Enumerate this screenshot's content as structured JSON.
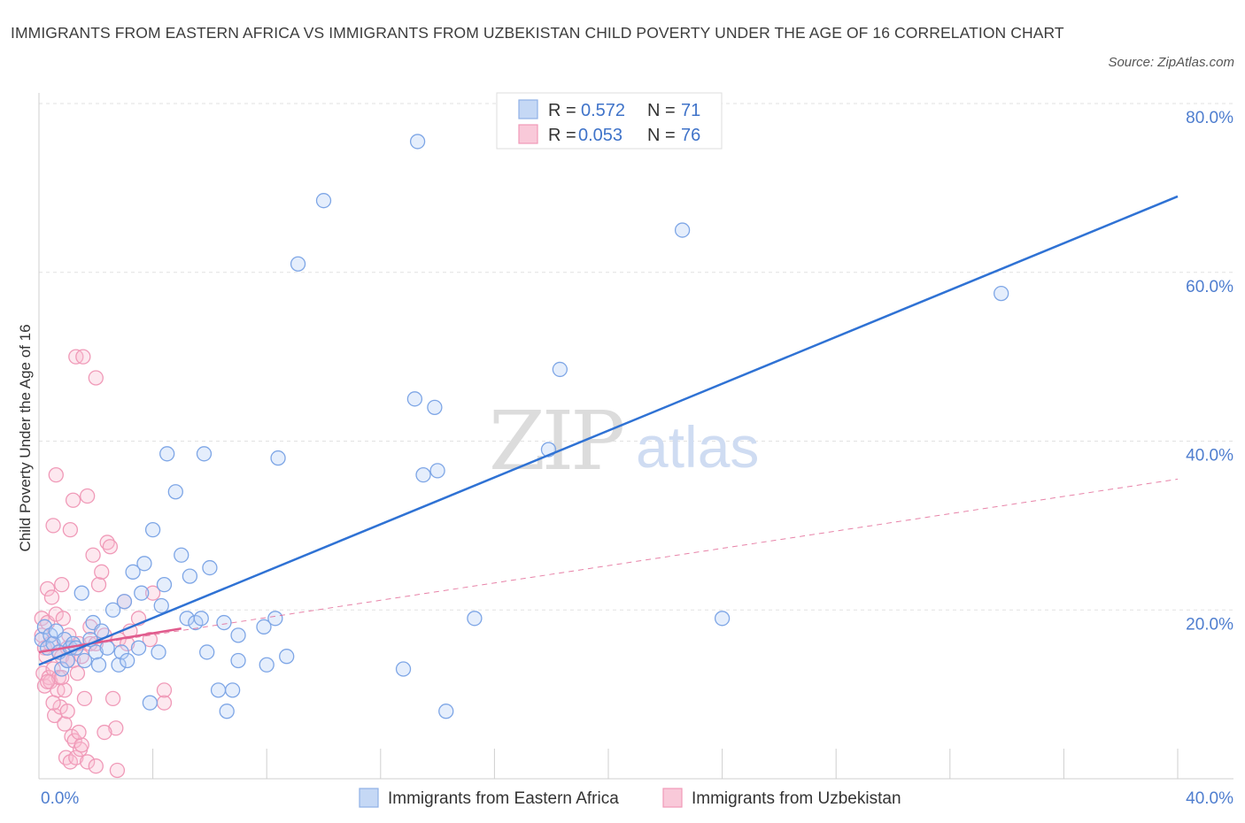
{
  "title": "IMMIGRANTS FROM EASTERN AFRICA VS IMMIGRANTS FROM UZBEKISTAN CHILD POVERTY UNDER THE AGE OF 16 CORRELATION CHART",
  "source": "Source: ZipAtlas.com",
  "watermark": {
    "zip": "ZIP",
    "atlas": "atlas"
  },
  "legend": {
    "rows": [
      {
        "r_label": "R =",
        "r_value": "0.572",
        "n_label": "N =",
        "n_value": "71"
      },
      {
        "r_label": "R =",
        "r_value": "0.053",
        "n_label": "N =",
        "n_value": "76"
      }
    ]
  },
  "chart_data": {
    "type": "scatter",
    "title": "IMMIGRANTS FROM EASTERN AFRICA VS IMMIGRANTS FROM UZBEKISTAN CHILD POVERTY UNDER THE AGE OF 16 CORRELATION CHART",
    "xlabel": "",
    "ylabel": "Child Poverty Under the Age of 16",
    "xlim": [
      0,
      40
    ],
    "ylim": [
      0,
      80
    ],
    "x_tick_labels": [
      "0.0%",
      "40.0%"
    ],
    "y_ticks": [
      20,
      40,
      60,
      80
    ],
    "y_tick_labels": [
      "20.0%",
      "40.0%",
      "60.0%",
      "80.0%"
    ],
    "grid": true,
    "legend_position": "top-center",
    "colors": {
      "series1": "#6e9ee8",
      "series1_line": "#2f72d4",
      "series2": "#f090b0",
      "series2_line": "#e05a8c"
    },
    "series": [
      {
        "name": "Immigrants from Eastern Africa",
        "trend": {
          "x": [
            0,
            40
          ],
          "y": [
            13.5,
            69.0
          ],
          "style": "solid"
        },
        "points": [
          [
            0.1,
            16.5
          ],
          [
            0.2,
            18.0
          ],
          [
            0.3,
            15.5
          ],
          [
            0.4,
            17.0
          ],
          [
            0.5,
            16.0
          ],
          [
            0.6,
            17.5
          ],
          [
            0.7,
            15.0
          ],
          [
            0.8,
            13.0
          ],
          [
            0.9,
            16.5
          ],
          [
            1.0,
            14.0
          ],
          [
            1.1,
            15.5
          ],
          [
            1.2,
            16.0
          ],
          [
            1.3,
            15.5
          ],
          [
            1.5,
            22.0
          ],
          [
            1.6,
            14.0
          ],
          [
            1.8,
            16.5
          ],
          [
            1.9,
            18.5
          ],
          [
            2.0,
            15.0
          ],
          [
            2.1,
            13.5
          ],
          [
            2.2,
            17.5
          ],
          [
            2.4,
            15.5
          ],
          [
            2.6,
            20.0
          ],
          [
            2.8,
            13.5
          ],
          [
            2.9,
            15.0
          ],
          [
            3.0,
            21.0
          ],
          [
            3.1,
            14.0
          ],
          [
            3.3,
            24.5
          ],
          [
            3.5,
            15.5
          ],
          [
            3.6,
            22.0
          ],
          [
            3.7,
            25.5
          ],
          [
            3.9,
            9.0
          ],
          [
            4.0,
            29.5
          ],
          [
            4.2,
            15.0
          ],
          [
            4.3,
            20.5
          ],
          [
            4.4,
            23.0
          ],
          [
            4.5,
            38.5
          ],
          [
            4.8,
            34.0
          ],
          [
            5.0,
            26.5
          ],
          [
            5.2,
            19.0
          ],
          [
            5.3,
            24.0
          ],
          [
            5.5,
            18.5
          ],
          [
            5.7,
            19.0
          ],
          [
            5.8,
            38.5
          ],
          [
            5.9,
            15.0
          ],
          [
            6.0,
            25.0
          ],
          [
            6.3,
            10.5
          ],
          [
            6.5,
            18.5
          ],
          [
            6.6,
            8.0
          ],
          [
            6.8,
            10.5
          ],
          [
            7.0,
            17.0
          ],
          [
            7.0,
            14.0
          ],
          [
            7.9,
            18.0
          ],
          [
            8.0,
            13.5
          ],
          [
            8.3,
            19.0
          ],
          [
            8.4,
            38.0
          ],
          [
            8.7,
            14.5
          ],
          [
            9.1,
            61.0
          ],
          [
            10.0,
            68.5
          ],
          [
            12.8,
            13.0
          ],
          [
            13.2,
            45.0
          ],
          [
            13.3,
            75.5
          ],
          [
            13.9,
            44.0
          ],
          [
            14.3,
            8.0
          ],
          [
            15.3,
            19.0
          ],
          [
            17.9,
            39.0
          ],
          [
            18.3,
            48.5
          ],
          [
            22.6,
            65.0
          ],
          [
            24.0,
            19.0
          ],
          [
            33.8,
            57.5
          ],
          [
            14.0,
            36.5
          ],
          [
            13.5,
            36.0
          ]
        ]
      },
      {
        "name": "Immigrants from Uzbekistan",
        "trend": {
          "x": [
            0,
            40
          ],
          "y": [
            15.0,
            35.5
          ],
          "style": "dashed"
        },
        "trend_solid": {
          "x": [
            0,
            5
          ],
          "y": [
            15.0,
            17.8
          ]
        },
        "points": [
          [
            0.1,
            19.0
          ],
          [
            0.1,
            17.0
          ],
          [
            0.15,
            12.5
          ],
          [
            0.2,
            11.0
          ],
          [
            0.2,
            15.5
          ],
          [
            0.25,
            14.5
          ],
          [
            0.3,
            22.5
          ],
          [
            0.3,
            18.5
          ],
          [
            0.35,
            12.0
          ],
          [
            0.4,
            16.0
          ],
          [
            0.4,
            11.5
          ],
          [
            0.45,
            21.5
          ],
          [
            0.5,
            13.0
          ],
          [
            0.5,
            30.0
          ],
          [
            0.55,
            7.5
          ],
          [
            0.6,
            19.5
          ],
          [
            0.6,
            36.0
          ],
          [
            0.65,
            10.5
          ],
          [
            0.7,
            15.0
          ],
          [
            0.7,
            12.0
          ],
          [
            0.75,
            8.5
          ],
          [
            0.8,
            23.0
          ],
          [
            0.8,
            14.5
          ],
          [
            0.85,
            19.0
          ],
          [
            0.9,
            6.5
          ],
          [
            0.9,
            10.5
          ],
          [
            0.95,
            2.5
          ],
          [
            1.0,
            15.5
          ],
          [
            1.0,
            8.0
          ],
          [
            1.05,
            17.0
          ],
          [
            1.1,
            29.5
          ],
          [
            1.1,
            2.0
          ],
          [
            1.15,
            5.0
          ],
          [
            1.2,
            33.0
          ],
          [
            1.2,
            14.0
          ],
          [
            1.25,
            4.5
          ],
          [
            1.3,
            50.0
          ],
          [
            1.3,
            2.5
          ],
          [
            1.35,
            12.5
          ],
          [
            1.4,
            16.0
          ],
          [
            1.45,
            3.5
          ],
          [
            1.5,
            14.5
          ],
          [
            1.5,
            4.0
          ],
          [
            1.55,
            50.0
          ],
          [
            1.6,
            9.5
          ],
          [
            1.7,
            33.5
          ],
          [
            1.7,
            2.0
          ],
          [
            1.8,
            18.0
          ],
          [
            1.8,
            16.0
          ],
          [
            1.9,
            26.5
          ],
          [
            2.0,
            47.5
          ],
          [
            2.0,
            1.5
          ],
          [
            2.1,
            23.0
          ],
          [
            2.2,
            24.5
          ],
          [
            2.3,
            17.0
          ],
          [
            2.4,
            28.0
          ],
          [
            2.5,
            27.5
          ],
          [
            2.6,
            9.5
          ],
          [
            2.7,
            6.0
          ],
          [
            2.75,
            1.0
          ],
          [
            2.8,
            16.5
          ],
          [
            3.0,
            21.0
          ],
          [
            3.1,
            16.0
          ],
          [
            3.2,
            17.5
          ],
          [
            3.5,
            19.0
          ],
          [
            3.9,
            16.5
          ],
          [
            4.0,
            22.0
          ],
          [
            4.4,
            9.0
          ],
          [
            4.4,
            10.5
          ],
          [
            2.0,
            16.0
          ],
          [
            1.4,
            5.5
          ],
          [
            0.3,
            11.5
          ],
          [
            0.5,
            9.0
          ],
          [
            0.8,
            12.0
          ],
          [
            1.0,
            14.0
          ],
          [
            2.3,
            5.5
          ]
        ]
      }
    ],
    "bottom_legend": [
      "Immigrants from Eastern Africa",
      "Immigrants from Uzbekistan"
    ]
  }
}
